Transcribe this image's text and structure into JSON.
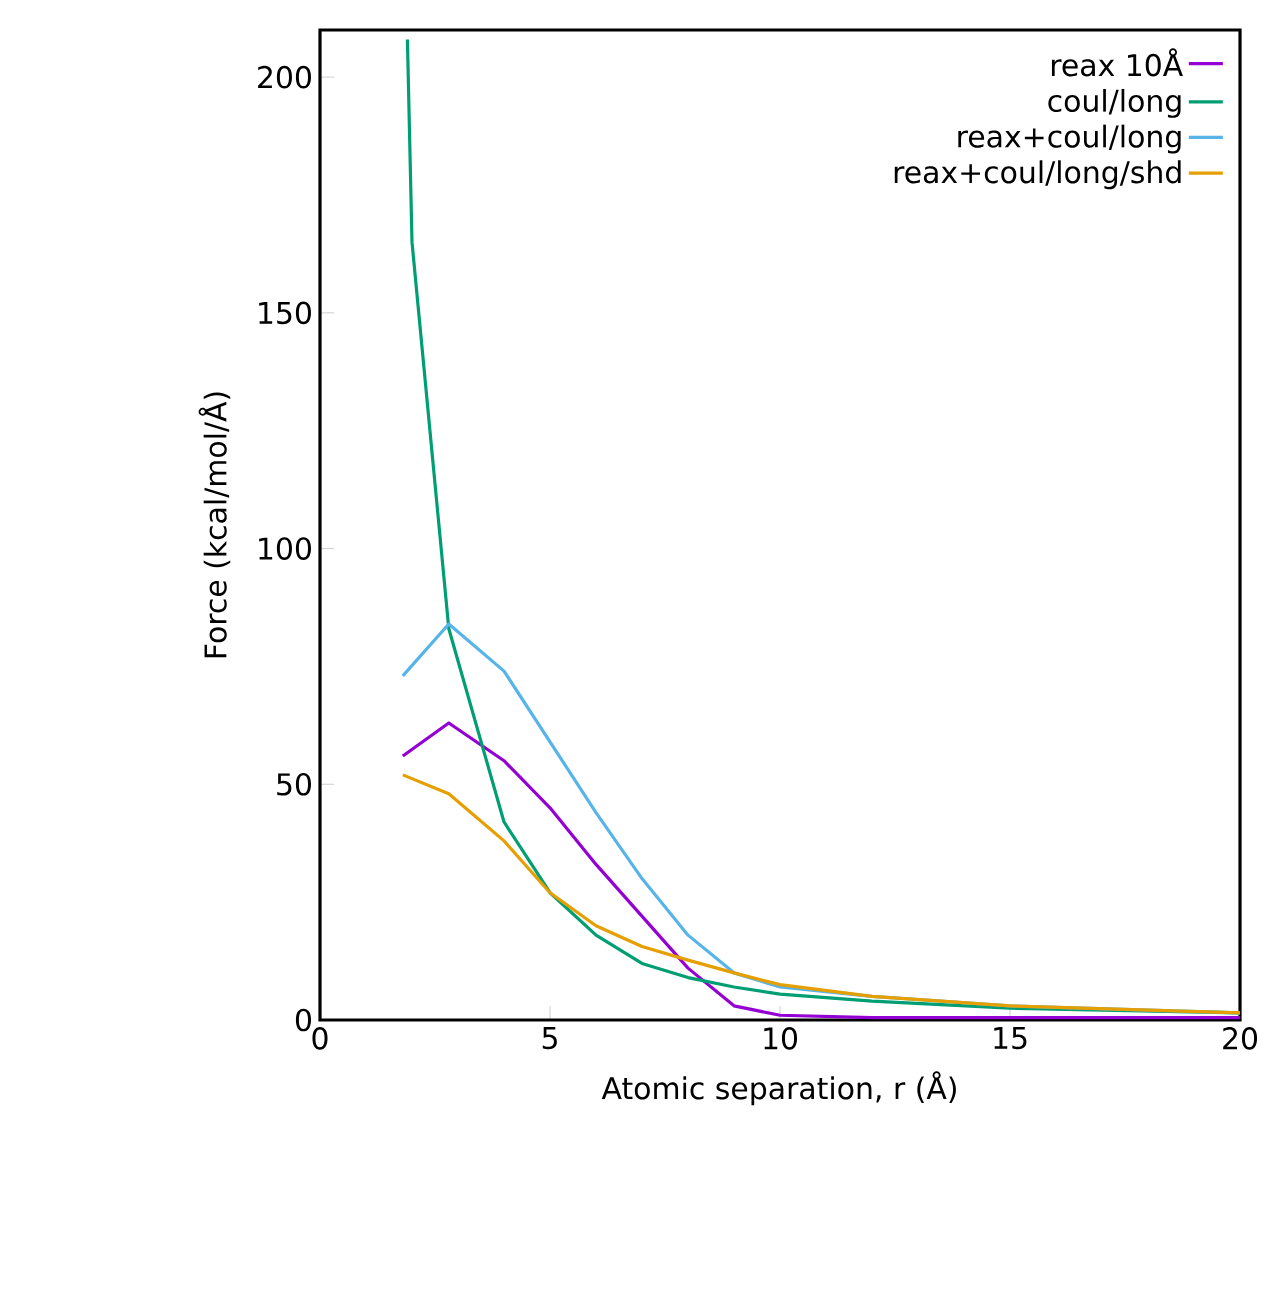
{
  "chart_data": {
    "type": "line",
    "xlabel": "Atomic separation, r (Å)",
    "ylabel": "Force (kcal/mol/Å)",
    "xlim": [
      0,
      20
    ],
    "ylim": [
      0,
      210
    ],
    "xticks": [
      0,
      5,
      10,
      15,
      20
    ],
    "yticks": [
      0,
      50,
      100,
      150,
      200
    ],
    "legend": "top right",
    "grid": false,
    "marker": "none",
    "line_style": "solid",
    "series": [
      {
        "name": "reax 10Å",
        "color": "#9400d3",
        "x": [
          1.8,
          2.8,
          4,
          5,
          6,
          7,
          8,
          9,
          10,
          12,
          15,
          20
        ],
        "values": [
          56,
          63,
          55,
          45,
          33,
          22,
          11,
          3,
          1,
          0.5,
          0.5,
          0.5
        ]
      },
      {
        "name": "coul/long",
        "color": "#009e73",
        "x": [
          1.9,
          2,
          2.8,
          4,
          5,
          6,
          7,
          8,
          9,
          10,
          12,
          15,
          20
        ],
        "values": [
          208,
          165,
          83,
          42,
          27,
          18,
          12,
          9,
          7,
          5.5,
          4,
          2.5,
          1.5
        ]
      },
      {
        "name": "reax+coul/long",
        "color": "#56b4e9",
        "x": [
          1.8,
          2.8,
          4,
          5,
          6,
          7,
          8,
          9,
          10,
          12,
          15,
          20
        ],
        "values": [
          73,
          84,
          74,
          59,
          44,
          30,
          18,
          10,
          7,
          5,
          3,
          1.5
        ]
      },
      {
        "name": "reax+coul/long/shd",
        "color": "#e69f00",
        "x": [
          1.8,
          2.8,
          4,
          5,
          6,
          7,
          8,
          9,
          10,
          12,
          15,
          20
        ],
        "values": [
          52,
          48,
          38,
          27,
          20,
          15.6,
          12.7,
          10,
          7.5,
          5,
          3,
          1.5
        ]
      }
    ]
  }
}
